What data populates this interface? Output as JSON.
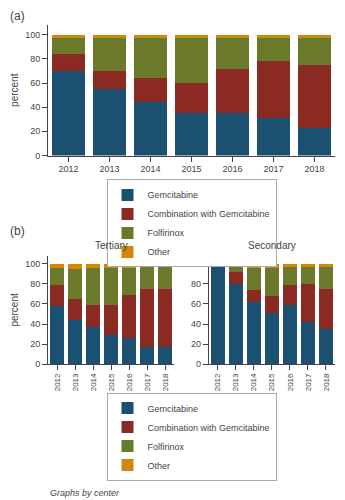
{
  "chart_data": [
    {
      "type": "bar",
      "stacked": true,
      "annotations": [
        "(a)"
      ],
      "ylabel": "percent",
      "categories": [
        "2012",
        "2013",
        "2014",
        "2015",
        "2016",
        "2017",
        "2018"
      ],
      "series": [
        {
          "name": "Gemcitabine",
          "color": "#1b5070",
          "values": [
            70,
            55,
            44,
            35,
            35,
            31,
            23
          ]
        },
        {
          "name": "Combination with Gemcitabine",
          "color": "#8b2a22",
          "values": [
            14,
            15,
            20,
            25,
            37,
            47,
            52
          ]
        },
        {
          "name": "Folfirinox",
          "color": "#6b7a2a",
          "values": [
            13,
            27,
            33,
            37,
            25,
            19,
            22
          ]
        },
        {
          "name": "Other",
          "color": "#d4860a",
          "values": [
            3,
            3,
            3,
            3,
            3,
            3,
            3
          ]
        }
      ],
      "ylim": [
        0,
        108
      ],
      "yticks": [
        0,
        20,
        40,
        60,
        80,
        100
      ],
      "grid": false,
      "legend": "bottom"
    },
    {
      "type": "bar",
      "stacked": true,
      "title": "Tertiary",
      "annotations": [
        "(b)"
      ],
      "ylabel": "percent",
      "categories": [
        "2012",
        "2013",
        "2014",
        "2015",
        "2016",
        "2017",
        "2018"
      ],
      "series": [
        {
          "name": "Gemcitabine",
          "color": "#1b5070",
          "values": [
            58,
            44,
            37,
            29,
            26,
            17,
            17
          ]
        },
        {
          "name": "Combination with Gemcitabine",
          "color": "#8b2a22",
          "values": [
            21,
            21,
            22,
            30,
            43,
            58,
            58
          ]
        },
        {
          "name": "Folfirinox",
          "color": "#6b7a2a",
          "values": [
            17,
            30,
            37,
            37,
            27,
            22,
            22
          ]
        },
        {
          "name": "Other",
          "color": "#d4860a",
          "values": [
            4,
            5,
            4,
            4,
            4,
            3,
            3
          ]
        }
      ],
      "ylim": [
        0,
        108
      ],
      "yticks": [
        0,
        20,
        40,
        60,
        80,
        100
      ],
      "grid": false,
      "legend": "bottom"
    },
    {
      "type": "bar",
      "stacked": true,
      "title": "Secondary",
      "annotations": [
        "Graphs by center"
      ],
      "categories": [
        "2012",
        "2013",
        "2014",
        "2015",
        "2016",
        "2017",
        "2018"
      ],
      "series": [
        {
          "name": "Gemcitabine",
          "color": "#1b5070",
          "values": [
            98,
            80,
            62,
            51,
            59,
            42,
            35
          ]
        },
        {
          "name": "Combination with Gemcitabine",
          "color": "#8b2a22",
          "values": [
            1,
            12,
            12,
            17,
            20,
            38,
            40
          ]
        },
        {
          "name": "Folfirinox",
          "color": "#6b7a2a",
          "values": [
            1,
            6,
            22,
            28,
            18,
            17,
            22
          ]
        },
        {
          "name": "Other",
          "color": "#d4860a",
          "values": [
            0,
            2,
            4,
            4,
            3,
            3,
            3
          ]
        }
      ],
      "ylim": [
        0,
        108
      ],
      "yticks": [
        0,
        20,
        40,
        60,
        80,
        100
      ],
      "grid": false
    }
  ]
}
